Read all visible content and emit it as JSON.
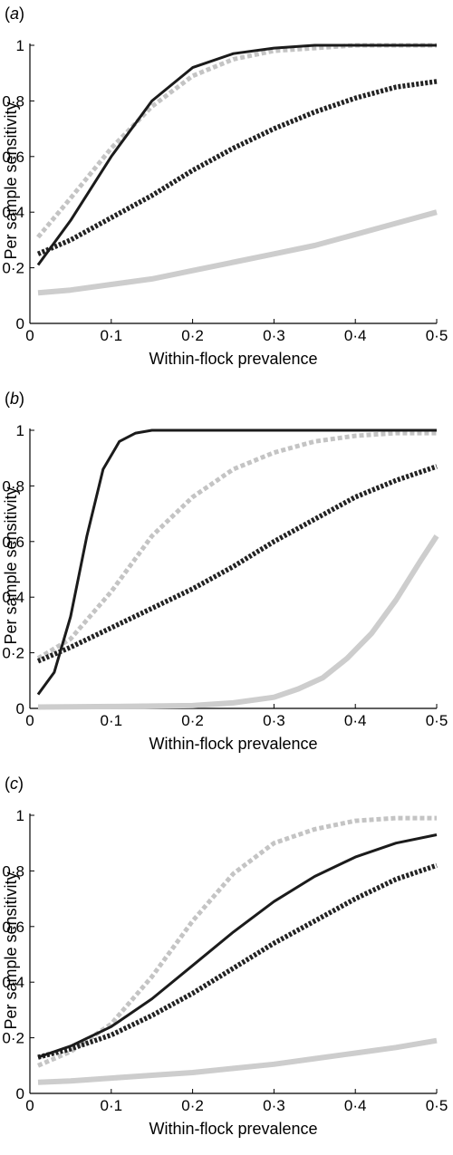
{
  "chart_data": [
    {
      "type": "line",
      "panel_label_open": "(",
      "panel_label_letter": "a",
      "panel_label_close": ")",
      "xlabel": "Within-flock prevalence",
      "ylabel": "Per sample sensitivity",
      "xlim": [
        0,
        0.5
      ],
      "ylim": [
        0,
        1
      ],
      "xticks": [
        {
          "v": 0,
          "label": "0"
        },
        {
          "v": 0.1,
          "label": "0·1"
        },
        {
          "v": 0.2,
          "label": "0·2"
        },
        {
          "v": 0.3,
          "label": "0·3"
        },
        {
          "v": 0.4,
          "label": "0·4"
        },
        {
          "v": 0.5,
          "label": "0·5"
        }
      ],
      "yticks": [
        {
          "v": 0,
          "label": "0"
        },
        {
          "v": 0.2,
          "label": "0·2"
        },
        {
          "v": 0.4,
          "label": "0·4"
        },
        {
          "v": 0.6,
          "label": "0·6"
        },
        {
          "v": 0.8,
          "label": "0·8"
        },
        {
          "v": 1,
          "label": "1"
        }
      ],
      "grid": false,
      "series": [
        {
          "style": "solid-black",
          "x": [
            0.01,
            0.05,
            0.1,
            0.15,
            0.2,
            0.25,
            0.3,
            0.35,
            0.4,
            0.45,
            0.5
          ],
          "y": [
            0.21,
            0.37,
            0.6,
            0.8,
            0.92,
            0.97,
            0.99,
            1.0,
            1.0,
            1.0,
            1.0
          ]
        },
        {
          "style": "dashed-gray",
          "x": [
            0.01,
            0.05,
            0.1,
            0.15,
            0.2,
            0.25,
            0.3,
            0.35,
            0.4,
            0.45,
            0.5
          ],
          "y": [
            0.31,
            0.45,
            0.63,
            0.78,
            0.89,
            0.95,
            0.98,
            0.99,
            1.0,
            1.0,
            1.0
          ]
        },
        {
          "style": "dotted-black",
          "x": [
            0.01,
            0.05,
            0.1,
            0.15,
            0.2,
            0.25,
            0.3,
            0.35,
            0.4,
            0.45,
            0.5
          ],
          "y": [
            0.25,
            0.3,
            0.38,
            0.46,
            0.55,
            0.63,
            0.7,
            0.76,
            0.81,
            0.85,
            0.87
          ]
        },
        {
          "style": "thick-gray",
          "x": [
            0.01,
            0.05,
            0.1,
            0.15,
            0.2,
            0.25,
            0.3,
            0.35,
            0.4,
            0.45,
            0.5
          ],
          "y": [
            0.11,
            0.12,
            0.14,
            0.16,
            0.19,
            0.22,
            0.25,
            0.28,
            0.32,
            0.36,
            0.4
          ]
        }
      ]
    },
    {
      "type": "line",
      "panel_label_open": "(",
      "panel_label_letter": "b",
      "panel_label_close": ")",
      "xlabel": "Within-flock prevalence",
      "ylabel": "Per sample sensitivity",
      "xlim": [
        0,
        0.5
      ],
      "ylim": [
        0,
        1
      ],
      "xticks": [
        {
          "v": 0,
          "label": "0"
        },
        {
          "v": 0.1,
          "label": "0·1"
        },
        {
          "v": 0.2,
          "label": "0·2"
        },
        {
          "v": 0.3,
          "label": "0·3"
        },
        {
          "v": 0.4,
          "label": "0·4"
        },
        {
          "v": 0.5,
          "label": "0·5"
        }
      ],
      "yticks": [
        {
          "v": 0,
          "label": "0"
        },
        {
          "v": 0.2,
          "label": "0·2"
        },
        {
          "v": 0.4,
          "label": "0·4"
        },
        {
          "v": 0.6,
          "label": "0·6"
        },
        {
          "v": 0.8,
          "label": "0·8"
        },
        {
          "v": 1,
          "label": "1"
        }
      ],
      "grid": false,
      "series": [
        {
          "style": "solid-black",
          "x": [
            0.01,
            0.03,
            0.05,
            0.07,
            0.09,
            0.11,
            0.13,
            0.15,
            0.17,
            0.2,
            0.3,
            0.4,
            0.5
          ],
          "y": [
            0.05,
            0.13,
            0.33,
            0.62,
            0.86,
            0.96,
            0.99,
            1.0,
            1.0,
            1.0,
            1.0,
            1.0,
            1.0
          ]
        },
        {
          "style": "dashed-gray",
          "x": [
            0.01,
            0.05,
            0.1,
            0.15,
            0.2,
            0.25,
            0.3,
            0.35,
            0.4,
            0.45,
            0.5
          ],
          "y": [
            0.18,
            0.25,
            0.42,
            0.62,
            0.76,
            0.86,
            0.92,
            0.96,
            0.98,
            0.99,
            0.99
          ]
        },
        {
          "style": "dotted-black",
          "x": [
            0.01,
            0.05,
            0.1,
            0.15,
            0.2,
            0.25,
            0.3,
            0.35,
            0.4,
            0.45,
            0.5
          ],
          "y": [
            0.17,
            0.22,
            0.29,
            0.36,
            0.43,
            0.51,
            0.6,
            0.68,
            0.76,
            0.82,
            0.87
          ]
        },
        {
          "style": "thick-gray",
          "x": [
            0.01,
            0.1,
            0.2,
            0.25,
            0.3,
            0.33,
            0.36,
            0.39,
            0.42,
            0.45,
            0.48,
            0.5
          ],
          "y": [
            0.005,
            0.007,
            0.01,
            0.02,
            0.04,
            0.07,
            0.11,
            0.18,
            0.27,
            0.39,
            0.53,
            0.62
          ]
        }
      ]
    },
    {
      "type": "line",
      "panel_label_open": "(",
      "panel_label_letter": "c",
      "panel_label_close": ")",
      "xlabel": "Within-flock prevalence",
      "ylabel": "Per sample sensitivity",
      "xlim": [
        0,
        0.5
      ],
      "ylim": [
        0,
        1
      ],
      "xticks": [
        {
          "v": 0,
          "label": "0"
        },
        {
          "v": 0.1,
          "label": "0·1"
        },
        {
          "v": 0.2,
          "label": "0·2"
        },
        {
          "v": 0.3,
          "label": "0·3"
        },
        {
          "v": 0.4,
          "label": "0·4"
        },
        {
          "v": 0.5,
          "label": "0·5"
        }
      ],
      "yticks": [
        {
          "v": 0,
          "label": "0"
        },
        {
          "v": 0.2,
          "label": "0·2"
        },
        {
          "v": 0.4,
          "label": "0·4"
        },
        {
          "v": 0.6,
          "label": "0·6"
        },
        {
          "v": 0.8,
          "label": "0·8"
        },
        {
          "v": 1,
          "label": "1"
        }
      ],
      "grid": false,
      "series": [
        {
          "style": "solid-black",
          "x": [
            0.01,
            0.05,
            0.1,
            0.15,
            0.2,
            0.25,
            0.3,
            0.35,
            0.4,
            0.45,
            0.5
          ],
          "y": [
            0.13,
            0.17,
            0.24,
            0.34,
            0.46,
            0.58,
            0.69,
            0.78,
            0.85,
            0.9,
            0.93
          ]
        },
        {
          "style": "dashed-gray",
          "x": [
            0.01,
            0.05,
            0.1,
            0.15,
            0.2,
            0.25,
            0.3,
            0.35,
            0.4,
            0.45,
            0.5
          ],
          "y": [
            0.1,
            0.15,
            0.25,
            0.42,
            0.62,
            0.79,
            0.9,
            0.95,
            0.98,
            0.99,
            0.99
          ]
        },
        {
          "style": "dotted-black",
          "x": [
            0.01,
            0.05,
            0.1,
            0.15,
            0.2,
            0.25,
            0.3,
            0.35,
            0.4,
            0.45,
            0.5
          ],
          "y": [
            0.13,
            0.16,
            0.21,
            0.28,
            0.36,
            0.45,
            0.54,
            0.62,
            0.7,
            0.77,
            0.82
          ]
        },
        {
          "style": "thick-gray",
          "x": [
            0.01,
            0.05,
            0.1,
            0.15,
            0.2,
            0.25,
            0.3,
            0.35,
            0.4,
            0.45,
            0.5
          ],
          "y": [
            0.04,
            0.045,
            0.055,
            0.065,
            0.075,
            0.09,
            0.105,
            0.125,
            0.145,
            0.165,
            0.19
          ]
        }
      ]
    }
  ]
}
